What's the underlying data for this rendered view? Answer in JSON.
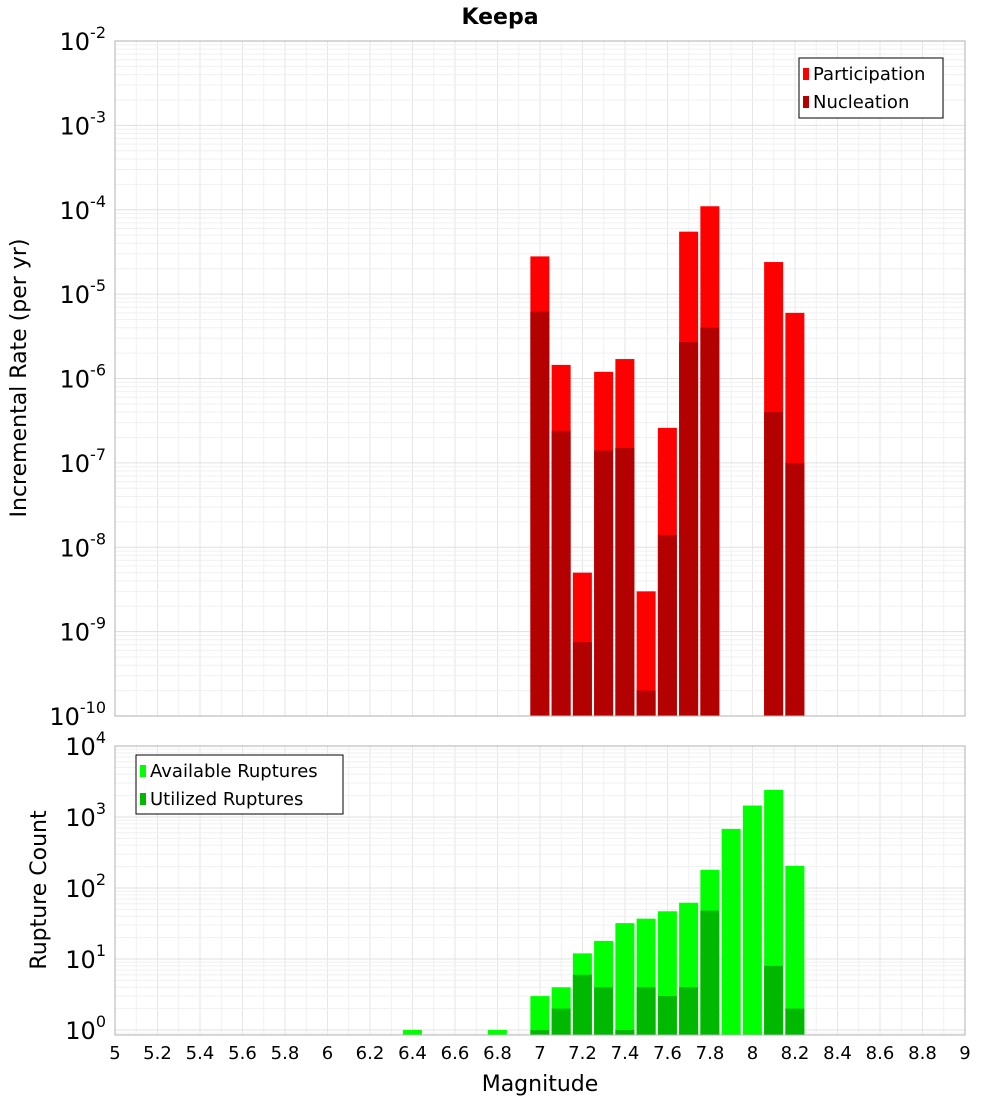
{
  "chart_data": [
    {
      "type": "bar",
      "title": "Keepa",
      "xlabel": "",
      "ylabel": "Incremental Rate (per yr)",
      "yscale": "log",
      "ylim": [
        1e-10,
        0.01
      ],
      "xlim": [
        5,
        9
      ],
      "grid": true,
      "legend_position": "top-right",
      "x": [
        7.0,
        7.1,
        7.2,
        7.3,
        7.4,
        7.5,
        7.6,
        7.7,
        7.8,
        8.1,
        8.2
      ],
      "series": [
        {
          "name": "Participation",
          "color": "#ff0000",
          "values": [
            2.8e-05,
            1.45e-06,
            5e-09,
            1.2e-06,
            1.7e-06,
            3e-09,
            2.6e-07,
            5.5e-05,
            0.00011,
            2.4e-05,
            6e-06
          ]
        },
        {
          "name": "Nucleation",
          "color": "#b30000",
          "values": [
            6.2e-06,
            2.4e-07,
            7.5e-10,
            1.4e-07,
            1.5e-07,
            2e-10,
            1.4e-08,
            2.7e-06,
            4e-06,
            4e-07,
            1e-07
          ]
        }
      ],
      "y_ticks": [
        {
          "mantissa": "10",
          "exp": "-10"
        },
        {
          "mantissa": "10",
          "exp": "-9"
        },
        {
          "mantissa": "10",
          "exp": "-8"
        },
        {
          "mantissa": "10",
          "exp": "-7"
        },
        {
          "mantissa": "10",
          "exp": "-6"
        },
        {
          "mantissa": "10",
          "exp": "-5"
        },
        {
          "mantissa": "10",
          "exp": "-4"
        },
        {
          "mantissa": "10",
          "exp": "-3"
        },
        {
          "mantissa": "10",
          "exp": "-2"
        }
      ]
    },
    {
      "type": "bar",
      "title": "",
      "xlabel": "Magnitude",
      "ylabel": "Rupture Count",
      "yscale": "log",
      "ylim": [
        0.85,
        10000
      ],
      "xlim": [
        5,
        9
      ],
      "grid": true,
      "legend_position": "top-left",
      "x_ticks": [
        "5",
        "5.2",
        "5.4",
        "5.6",
        "5.8",
        "6",
        "6.2",
        "6.4",
        "6.6",
        "6.8",
        "7",
        "7.2",
        "7.4",
        "7.6",
        "7.8",
        "8",
        "8.2",
        "8.4",
        "8.6",
        "8.8",
        "9"
      ],
      "x": [
        6.4,
        6.8,
        7.0,
        7.1,
        7.2,
        7.3,
        7.4,
        7.5,
        7.6,
        7.7,
        7.8,
        7.9,
        8.0,
        8.1,
        8.2
      ],
      "series": [
        {
          "name": "Available Ruptures",
          "color": "#00ff00",
          "values": [
            1,
            1,
            3,
            4,
            12,
            18,
            32,
            37,
            47,
            62,
            180,
            680,
            1450,
            2400,
            205
          ]
        },
        {
          "name": "Utilized Ruptures",
          "color": "#00b800",
          "values": [
            0,
            0,
            1,
            2,
            6,
            4,
            1,
            4,
            3,
            4,
            48,
            0,
            0,
            8,
            2
          ]
        }
      ],
      "y_ticks": [
        {
          "mantissa": "10",
          "exp": "0"
        },
        {
          "mantissa": "10",
          "exp": "1"
        },
        {
          "mantissa": "10",
          "exp": "2"
        },
        {
          "mantissa": "10",
          "exp": "3"
        },
        {
          "mantissa": "10",
          "exp": "4"
        }
      ]
    }
  ]
}
